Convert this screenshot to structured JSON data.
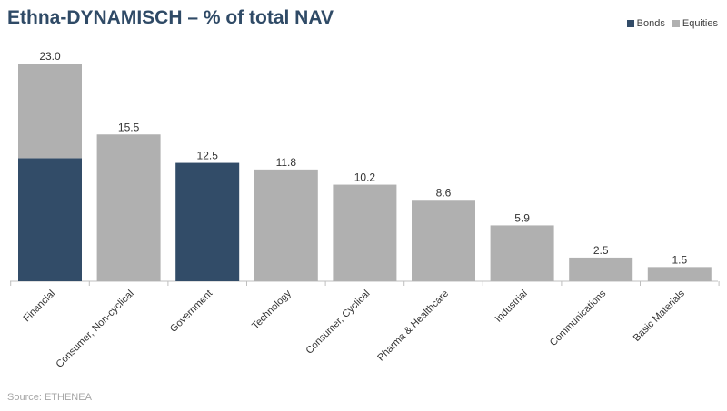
{
  "title": "Ethna-DYNAMISCH – % of total NAV",
  "source": "Source: ETHENEA",
  "colors": {
    "bonds": "#324c68",
    "equities": "#b0b0b0",
    "axis": "#bfbfbf",
    "label": "#333333"
  },
  "legend": [
    {
      "name": "Bonds",
      "color": "#324c68"
    },
    {
      "name": "Equities",
      "color": "#b0b0b0"
    }
  ],
  "chart_data": {
    "type": "bar",
    "stacked": true,
    "categories": [
      "Financial",
      "Consumer, Non-cyclical",
      "Government",
      "Technology",
      "Consumer, Cyclical",
      "Pharma & Healthcare",
      "Industrial",
      "Communications",
      "Basic Materials"
    ],
    "series": [
      {
        "name": "Bonds",
        "values": [
          13.0,
          0,
          12.5,
          0,
          0,
          0,
          0,
          0,
          0
        ]
      },
      {
        "name": "Equities",
        "values": [
          10.0,
          15.5,
          0,
          11.8,
          10.2,
          8.6,
          5.9,
          2.5,
          1.5
        ]
      }
    ],
    "totals": [
      "23.0",
      "15.5",
      "12.5",
      "11.8",
      "10.2",
      "8.6",
      "5.9",
      "2.5",
      "1.5"
    ],
    "ylim": [
      0,
      23.0
    ],
    "grid": false,
    "legend_position": "top-right"
  }
}
